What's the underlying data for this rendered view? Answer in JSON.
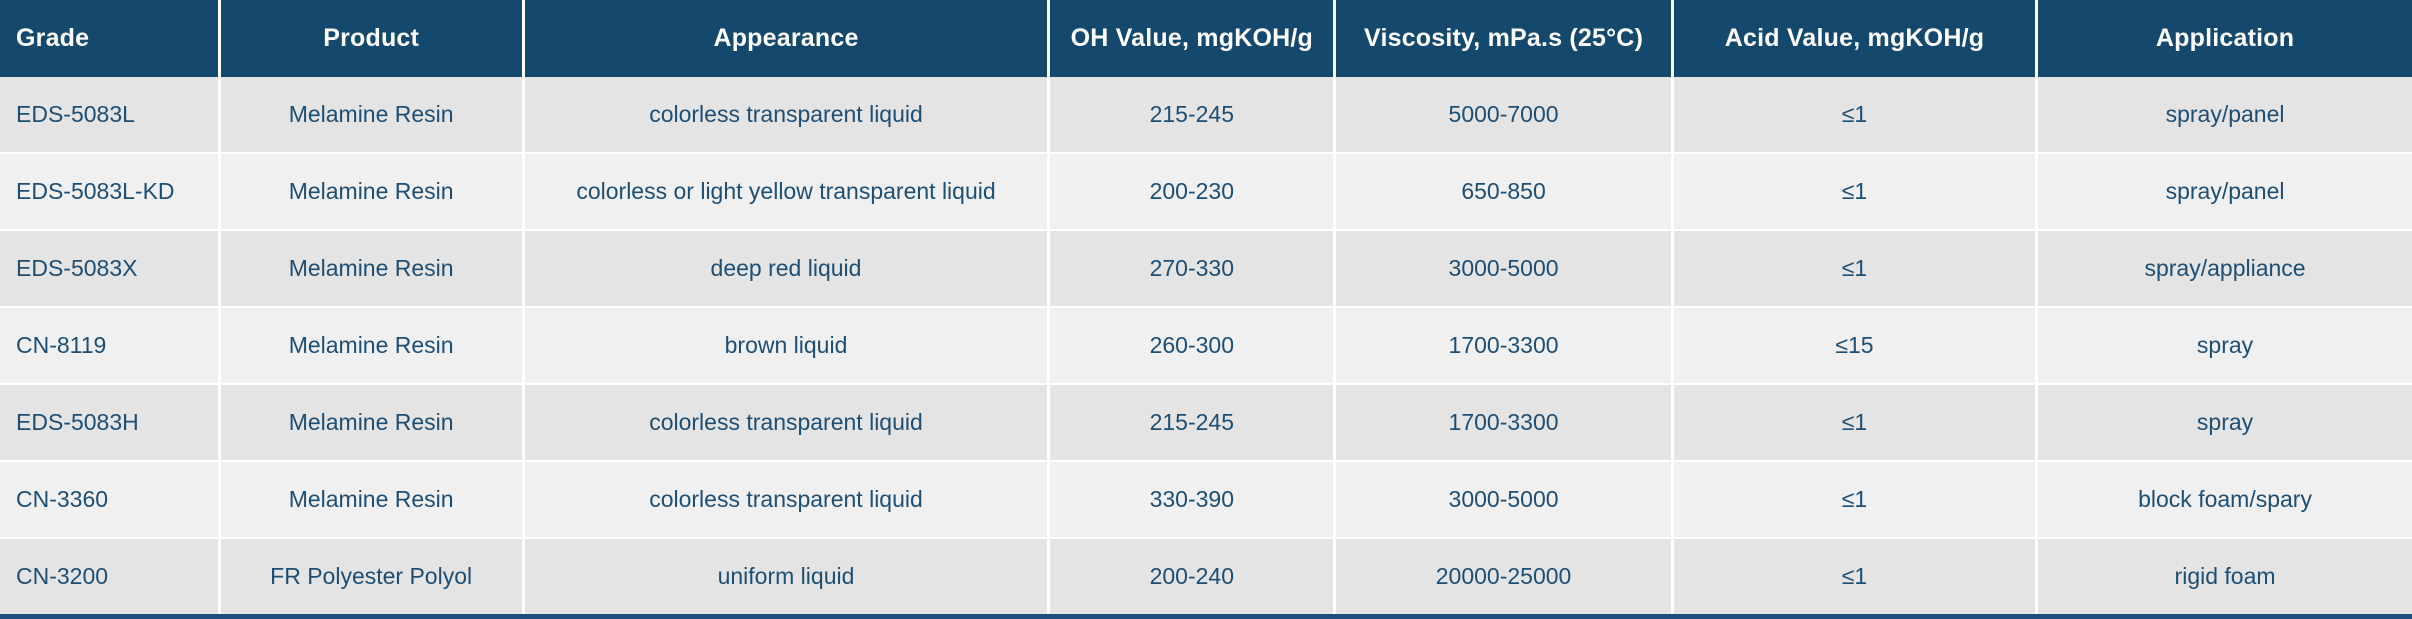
{
  "table": {
    "columns": [
      {
        "id": "grade",
        "label": "Grade"
      },
      {
        "id": "product",
        "label": "Product"
      },
      {
        "id": "appearance",
        "label": "Appearance"
      },
      {
        "id": "oh_value",
        "label": "OH Value, mgKOH/g"
      },
      {
        "id": "viscosity",
        "label": "Viscosity, mPa.s (25°C)"
      },
      {
        "id": "acid_value",
        "label": "Acid Value, mgKOH/g"
      },
      {
        "id": "application",
        "label": "Application"
      }
    ],
    "rows": [
      [
        "EDS-5083L",
        "Melamine Resin",
        "colorless transparent liquid",
        "215-245",
        "5000-7000",
        "≤1",
        "spray/panel"
      ],
      [
        "EDS-5083L-KD",
        "Melamine Resin",
        "colorless or light yellow transparent liquid",
        "200-230",
        "650-850",
        "≤1",
        "spray/panel"
      ],
      [
        "EDS-5083X",
        "Melamine Resin",
        "deep red liquid",
        "270-330",
        "3000-5000",
        "≤1",
        "spray/appliance"
      ],
      [
        "CN-8119",
        "Melamine Resin",
        "brown liquid",
        "260-300",
        "1700-3300",
        "≤15",
        "spray"
      ],
      [
        "EDS-5083H",
        "Melamine Resin",
        "colorless transparent liquid",
        "215-245",
        "1700-3300",
        "≤1",
        "spray"
      ],
      [
        "CN-3360",
        "Melamine Resin",
        "colorless transparent liquid",
        "330-390",
        "3000-5000",
        "≤1",
        "block foam/spary"
      ],
      [
        "CN-3200",
        "FR Polyester Polyol",
        "uniform liquid",
        "200-240",
        "20000-25000",
        "≤1",
        "rigid foam"
      ]
    ],
    "colors": {
      "header_bg": "#14486c",
      "header_text": "#ffffff",
      "row_odd_bg": "#e4e4e5",
      "row_even_bg": "#f0f0f1",
      "cell_text": "#1d4e74",
      "divider": "#ffffff",
      "bottom_border": "#1e4f7b"
    }
  }
}
